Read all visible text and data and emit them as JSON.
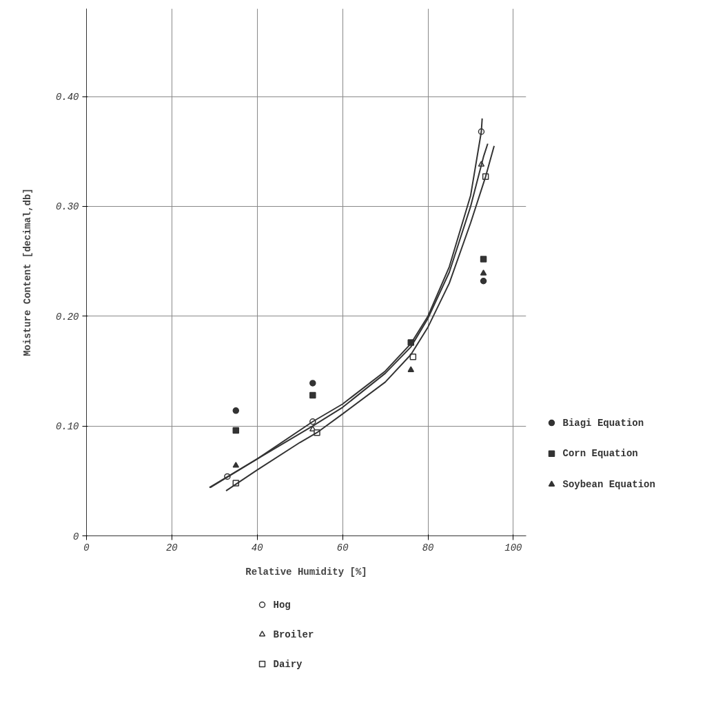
{
  "chart_data": {
    "type": "scatter",
    "xlabel": "Relative Humidity [%]",
    "ylabel": "Moisture Content [decimal,db]",
    "xlim": [
      0,
      103
    ],
    "ylim": [
      0,
      0.48
    ],
    "xticks": [
      0,
      20,
      40,
      60,
      80,
      100
    ],
    "yticks": [
      {
        "value": 0,
        "label": "0"
      },
      {
        "value": 0.1,
        "label": "0.10"
      },
      {
        "value": 0.2,
        "label": "0.20"
      },
      {
        "value": 0.3,
        "label": "0.30"
      },
      {
        "value": 0.4,
        "label": "0.40"
      }
    ],
    "grid": true,
    "legend": "right",
    "series": [
      {
        "name": "Biagi Equation",
        "marker": "circle",
        "color": "#333333",
        "x": [
          35,
          53,
          76,
          93
        ],
        "values": [
          0.114,
          0.139,
          null,
          0.232
        ]
      },
      {
        "name": "Corn Equation",
        "marker": "square",
        "color": "#333333",
        "x": [
          35,
          53,
          76,
          93
        ],
        "values": [
          0.096,
          0.128,
          0.176,
          0.252
        ]
      },
      {
        "name": "Soybean Equation",
        "marker": "triangle",
        "color": "#333333",
        "x": [
          35,
          53,
          76,
          93
        ],
        "values": [
          0.064,
          null,
          0.151,
          0.239
        ]
      },
      {
        "name": "Hog",
        "marker": "circle",
        "color": "#333333",
        "x": [
          33,
          53,
          76,
          92.5
        ],
        "values": [
          0.054,
          0.104,
          null,
          0.368
        ]
      },
      {
        "name": "Broiler",
        "marker": "triangle",
        "color": "#333333",
        "x": [
          53,
          74,
          92.5
        ],
        "values": [
          0.097,
          null,
          0.338
        ]
      },
      {
        "name": "Dairy",
        "marker": "square",
        "color": "#333333",
        "x": [
          35,
          54,
          76.5,
          93.5
        ],
        "values": [
          0.048,
          0.094,
          0.163,
          0.327
        ]
      },
      {
        "type": "line",
        "color": "#333333",
        "x": [
          28.8,
          40,
          53,
          60,
          70,
          76,
          80,
          85,
          90,
          92.5,
          92.7
        ],
        "values": [
          0.044,
          0.07,
          0.104,
          0.12,
          0.15,
          0.175,
          0.2,
          0.245,
          0.31,
          0.368,
          0.38
        ]
      },
      {
        "type": "line",
        "color": "#333333",
        "x": [
          29,
          40,
          53,
          60,
          70,
          76,
          80,
          85,
          90,
          93,
          94
        ],
        "values": [
          0.044,
          0.07,
          0.1,
          0.117,
          0.148,
          0.172,
          0.198,
          0.24,
          0.3,
          0.345,
          0.357
        ]
      },
      {
        "type": "line",
        "color": "#333333",
        "x": [
          32.7,
          40,
          50,
          54,
          60,
          70,
          76,
          80,
          85,
          90,
          93.5,
          95.5
        ],
        "values": [
          0.041,
          0.06,
          0.085,
          0.094,
          0.111,
          0.14,
          0.165,
          0.19,
          0.23,
          0.285,
          0.327,
          0.355
        ]
      }
    ]
  }
}
